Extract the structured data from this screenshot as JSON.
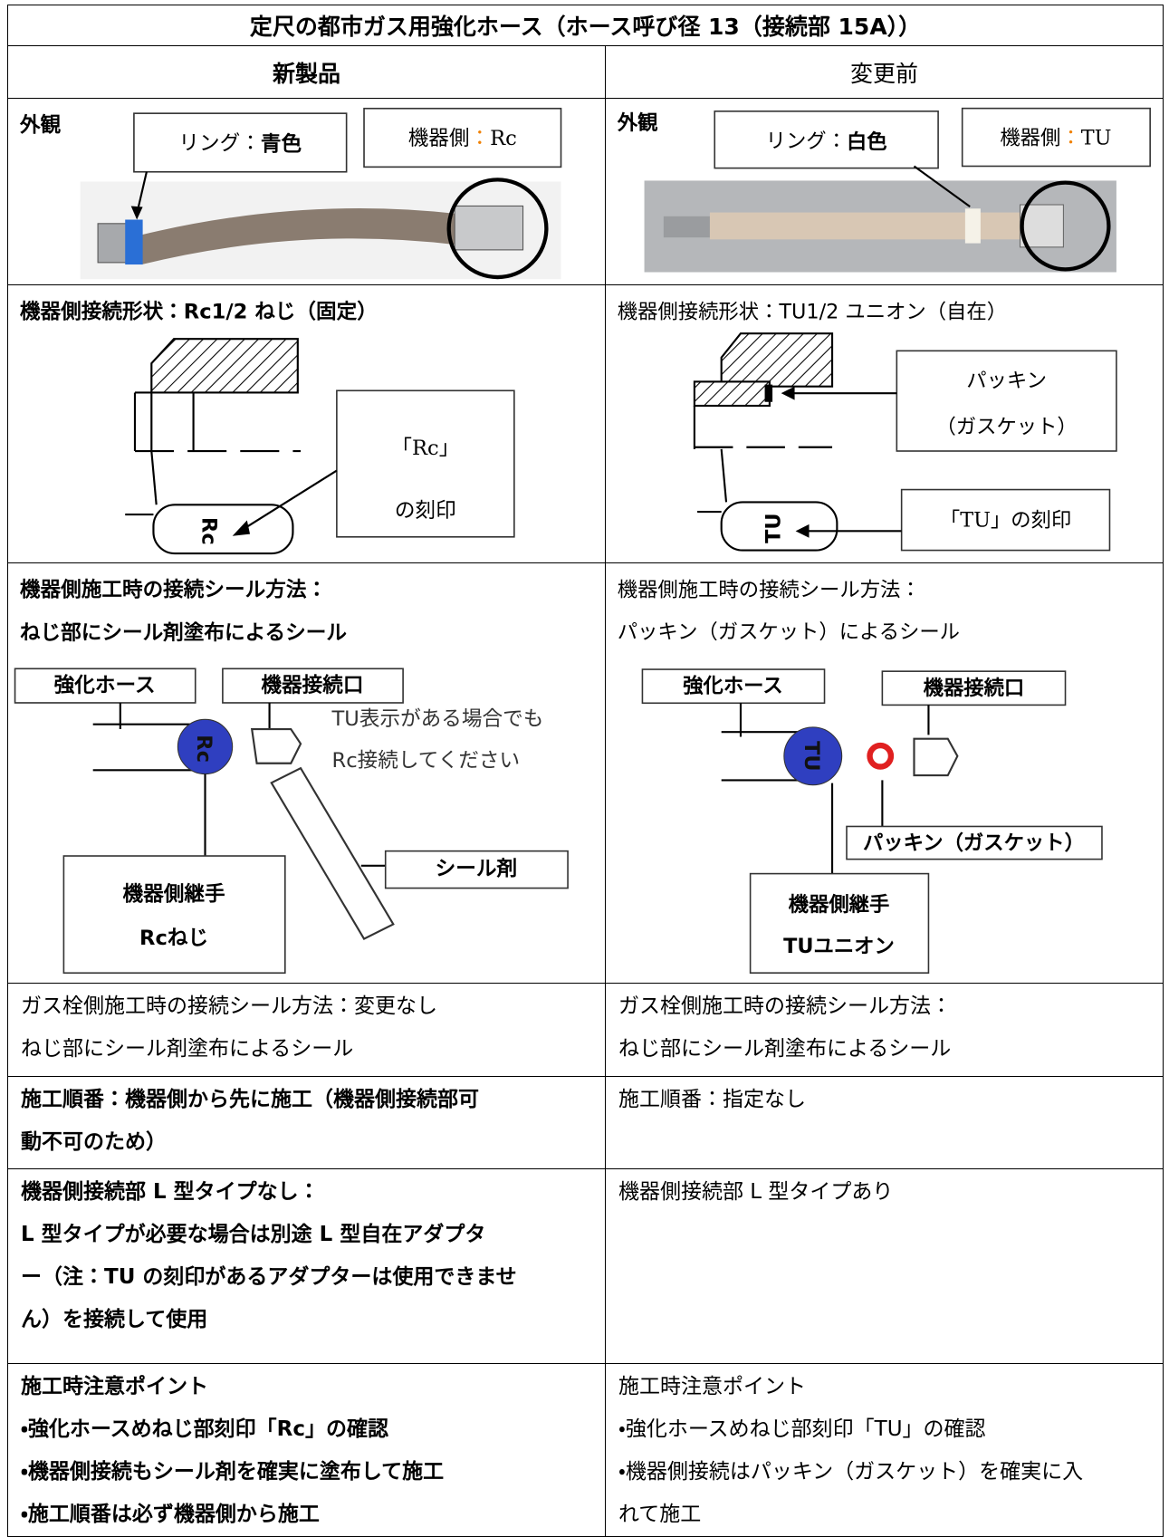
{
  "title": "定尺の都市ガス用強化ホース（ホース呼び径 13（接続部 15A））",
  "columns": [
    "新製品",
    "変更前"
  ],
  "appearance": {
    "new": {
      "label": "外観",
      "ring_label": "リング：",
      "ring_color": "青色",
      "side_label": "機器側",
      "side_sep": "：",
      "side_value": "Rc"
    },
    "old": {
      "label": "外観",
      "ring_label": "リング：",
      "ring_color": "白色",
      "side_label": "機器側",
      "side_sep": "：",
      "side_value": "TU"
    }
  },
  "shape": {
    "new": {
      "heading": "機器側接続形状：Rc1/2 ねじ（固定）",
      "engraving": "Rc",
      "callout": [
        "「Rc」",
        "の刻印"
      ]
    },
    "old": {
      "heading": "機器側接続形状：TU1/2 ユニオン（自在）",
      "engraving": "TU",
      "gasket": [
        "パッキン",
        "（ガスケット）"
      ],
      "callout": "「TU」の刻印"
    }
  },
  "device_seal": {
    "new": {
      "heading": [
        "機器側施工時の接続シール方法：",
        "ねじ部にシール剤塗布によるシール"
      ],
      "hose": "強化ホース",
      "port": "機器接続口",
      "note": [
        "TU表示がある場合でも",
        "Rc接続してください"
      ],
      "fitting_mark": "Rc",
      "fitting": [
        "機器側継手",
        "Rcねじ"
      ],
      "sealant": "シール剤"
    },
    "old": {
      "heading": [
        "機器側施工時の接続シール方法：",
        "パッキン（ガスケット）によるシール"
      ],
      "hose": "強化ホース",
      "port": "機器接続口",
      "fitting_mark": "TU",
      "gasket": "パッキン（ガスケット）",
      "fitting": [
        "機器側継手",
        "TUユニオン"
      ]
    }
  },
  "gas_valve_seal": {
    "new": [
      "ガス栓側施工時の接続シール方法：変更なし",
      "ねじ部にシール剤塗布によるシール"
    ],
    "old": [
      "ガス栓側施工時の接続シール方法：",
      "ねじ部にシール剤塗布によるシール"
    ]
  },
  "order": {
    "new": [
      "施工順番：機器側から先に施工（機器側接続部可",
      "動不可のため）"
    ],
    "old": [
      "施工順番：指定なし"
    ]
  },
  "l_type": {
    "new": [
      "機器側接続部 L 型タイプなし：",
      "L 型タイプが必要な場合は別途 L 型自在アダプタ",
      "ー（注：TU の刻印があるアダプターは使用できませ",
      "ん）を接続して使用"
    ],
    "old": [
      "機器側接続部 L 型タイプあり"
    ]
  },
  "points": {
    "new": [
      "施工時注意ポイント",
      "・強化ホースめねじ部刻印「Rc」の確認",
      "・機器側接続もシール剤を確実に塗布して施工",
      "・施工順番は必ず機器側から施工"
    ],
    "old": [
      "施工時注意ポイント",
      "・強化ホースめねじ部刻印「TU」の確認",
      "・機器側接続はパッキン（ガスケット）を確実に入",
      "れて施工"
    ]
  }
}
